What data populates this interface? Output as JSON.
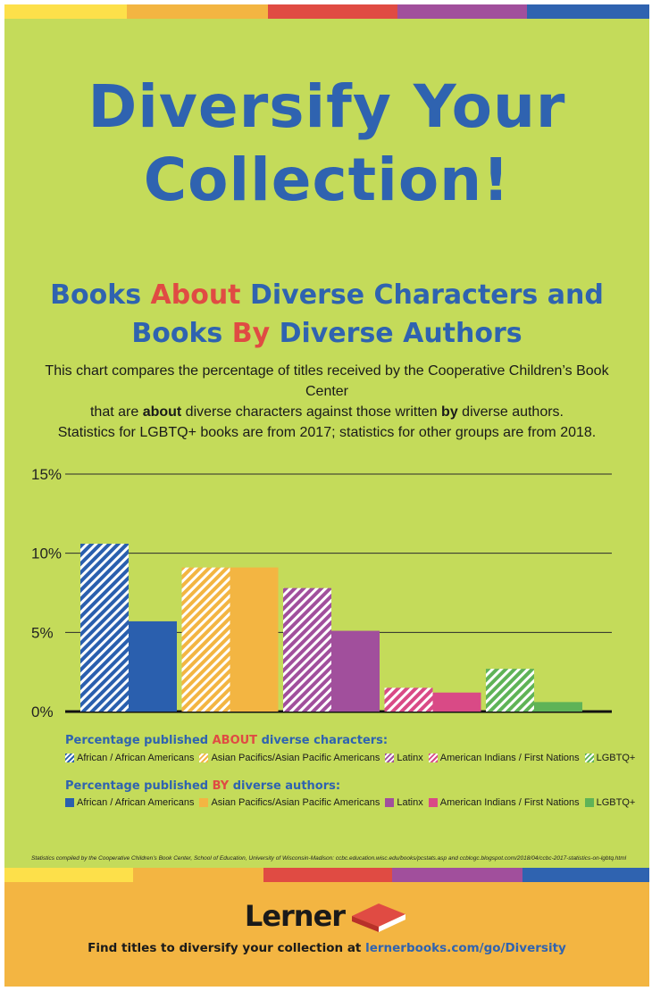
{
  "colors": {
    "background": "#c4db5a",
    "title_blue": "#2f63b0",
    "accent_red": "#e04b43",
    "footer_orange": "#f3b542",
    "stripe": [
      "#fde04a",
      "#f3b542",
      "#e04b43",
      "#a14f9c",
      "#2f63b0"
    ]
  },
  "title": {
    "line1": "Diversify Your",
    "line2": "Collection!"
  },
  "subtitle": {
    "line1_a": "Books ",
    "line1_b": "About",
    "line1_c": " Diverse Characters and",
    "line2_a": "Books ",
    "line2_b": "By",
    "line2_c": " Diverse Authors"
  },
  "intro": {
    "line1": "This chart compares the percentage of titles received by the Cooperative Children’s Book Center",
    "line2_a": "that are ",
    "line2_b": "about",
    "line2_c": " diverse characters against those written ",
    "line2_d": "by",
    "line2_e": " diverse authors.",
    "line3": "Statistics for LGBTQ+ books are from 2017; statistics for other groups are from 2018."
  },
  "chart_data": {
    "type": "bar",
    "categories": [
      "African / African Americans",
      "Asian Pacifics/Asian Pacific Americans",
      "Latinx",
      "American Indians / First Nations",
      "LGBTQ+"
    ],
    "series": [
      {
        "name": "Percentage published ABOUT diverse characters",
        "values": [
          10.6,
          9.1,
          7.8,
          1.5,
          2.7
        ],
        "pattern": "striped"
      },
      {
        "name": "Percentage published BY diverse authors",
        "values": [
          5.7,
          9.1,
          5.1,
          1.2,
          0.6
        ],
        "pattern": "solid"
      }
    ],
    "colors": [
      "#2a5fae",
      "#f3b542",
      "#a14f9c",
      "#d94a86",
      "#5fb357"
    ],
    "yticks": [
      "0%",
      "5%",
      "10%",
      "15%"
    ],
    "ylim": [
      0,
      15
    ],
    "grid": true
  },
  "legend": {
    "about_title_a": "Percentage published ",
    "about_title_b": "ABOUT",
    "about_title_c": " diverse characters:",
    "by_title_a": "Percentage published ",
    "by_title_b": "BY",
    "by_title_c": " diverse authors:",
    "items": [
      "African / African Americans",
      "Asian Pacifics/Asian Pacific Americans",
      "Latinx",
      "American Indians / First Nations",
      "LGBTQ+"
    ]
  },
  "footnote": "Statistics compiled by the Cooperative Children’s Book Center, School of Education, University of Wisconsin-Madison: ccbc.education.wisc.edu/books/pcstats.asp and ccblogc.blogspot.com/2018/04/ccbc-2017-statistics-on-lgbtq.html",
  "footer": {
    "logo_text": "Lerner",
    "logo_icon": "book-icon",
    "cta_a": "Find titles to diversify your collection at ",
    "cta_link": "lernerbooks.com/go/Diversity"
  }
}
